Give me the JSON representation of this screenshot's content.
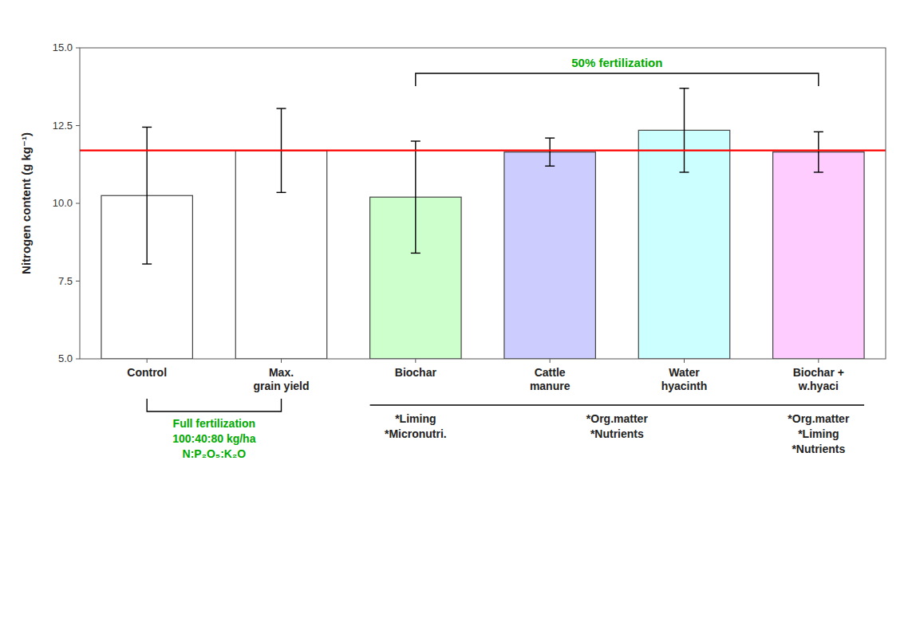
{
  "chart_data": {
    "type": "bar",
    "categories": [
      "Control",
      "Max.\ngrain yield",
      "Biochar",
      "Cattle\nmanure",
      "Water\nhyacinth",
      "Biochar +\nw.hyaci"
    ],
    "values": [
      10.25,
      11.7,
      10.2,
      11.65,
      12.35,
      11.65
    ],
    "errors": [
      2.2,
      1.35,
      1.8,
      0.45,
      1.35,
      0.65
    ],
    "colors": [
      "#ffffff",
      "#ffffff",
      "#ccffcc",
      "#ccccff",
      "#ccffff",
      "#ffccff"
    ],
    "ylim": [
      5.0,
      15.0
    ],
    "yticks": [
      {
        "value": 5.0,
        "label": "5.0"
      },
      7.5,
      {
        "value": 10.0,
        "label": "10.0"
      },
      12.5,
      {
        "value": 15.0,
        "label": "15.0"
      }
    ],
    "ylabel": "Nitrogen content (g kg⁻¹)",
    "grid": false,
    "reference_line": {
      "value": 11.7,
      "color": "red"
    },
    "annotations_above": [
      {
        "text": [
          "50% fertilization"
        ],
        "from": "Biochar",
        "to": "Biochar +\nw.hyaci",
        "color": "#00aa00"
      }
    ],
    "annotations_below": [
      {
        "text": [
          "Full fertilization",
          "100:40:80 kg/ha",
          "N:P₂O₅:K₂O"
        ],
        "from": "Control",
        "to": "Max.\ngrain yield",
        "color": "#00aa00"
      },
      {
        "text": [
          "*Liming",
          "*Micronutri."
        ],
        "from": "Biochar",
        "to": "Biochar"
      },
      {
        "text": [
          "*Org.matter",
          "*Nutrients"
        ],
        "from": "Cattle\nmanure",
        "to": "Water\nhyacinth"
      },
      {
        "text": [
          "*Org.matter",
          "*Liming",
          "*Nutrients"
        ],
        "from": "Biochar +\nw.hyaci",
        "to": "Biochar +\nw.hyaci"
      }
    ]
  }
}
